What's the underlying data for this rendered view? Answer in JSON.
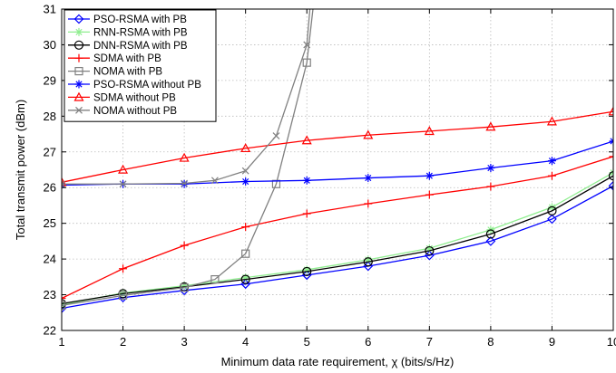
{
  "chart_data": {
    "type": "line",
    "xlabel": "Minimum data rate requirement, χ  (bits/s/Hz)",
    "ylabel": "Total transmit power (dBm)",
    "xlim": [
      1,
      10
    ],
    "ylim": [
      22,
      31
    ],
    "x_ticks": [
      "1",
      "2",
      "3",
      "4",
      "5",
      "6",
      "7",
      "8",
      "9",
      "10"
    ],
    "y_ticks": [
      "22",
      "23",
      "24",
      "25",
      "26",
      "27",
      "28",
      "29",
      "30",
      "31"
    ],
    "grid": true,
    "legend_position": "top-left",
    "series": [
      {
        "name": "PSO-RSMA with PB",
        "color": "#0000ff",
        "marker": "diamond",
        "x": [
          1,
          2,
          3,
          4,
          5,
          6,
          7,
          8,
          9,
          10
        ],
        "y": [
          22.62,
          22.92,
          23.12,
          23.3,
          23.55,
          23.8,
          24.1,
          24.5,
          25.12,
          26.05
        ]
      },
      {
        "name": "RNN-RSMA with PB",
        "color": "#90ee90",
        "marker": "star",
        "x": [
          1,
          2,
          3,
          4,
          5,
          6,
          7,
          8,
          9,
          10
        ],
        "y": [
          22.72,
          23.05,
          23.25,
          23.48,
          23.7,
          23.98,
          24.3,
          24.82,
          25.45,
          26.42
        ]
      },
      {
        "name": "DNN-RSMA with PB",
        "color": "#000000",
        "marker": "circle",
        "x": [
          1,
          2,
          3,
          4,
          5,
          6,
          7,
          8,
          9,
          10
        ],
        "y": [
          22.75,
          23.03,
          23.22,
          23.43,
          23.65,
          23.92,
          24.23,
          24.7,
          25.35,
          26.33
        ]
      },
      {
        "name": "SDMA with PB",
        "color": "#ff0000",
        "marker": "plus",
        "x": [
          1,
          2,
          3,
          4,
          5,
          6,
          7,
          8,
          9,
          10
        ],
        "y": [
          22.9,
          23.73,
          24.38,
          24.9,
          25.27,
          25.55,
          25.8,
          26.03,
          26.33,
          26.87
        ]
      },
      {
        "name": "NOMA with PB",
        "color": "#808080",
        "marker": "square",
        "x": [
          1,
          2,
          3,
          3.5,
          4,
          4.5,
          5,
          5.1
        ],
        "y": [
          22.7,
          22.98,
          23.2,
          23.43,
          24.15,
          26.1,
          29.5,
          31.0
        ]
      },
      {
        "name": "PSO-RSMA without PB",
        "color": "#0000ff",
        "marker": "asterisk",
        "x": [
          1,
          2,
          3,
          4,
          5,
          6,
          7,
          8,
          9,
          10
        ],
        "y": [
          26.07,
          26.1,
          26.1,
          26.17,
          26.2,
          26.27,
          26.33,
          26.55,
          26.75,
          27.3
        ]
      },
      {
        "name": "SDMA without PB",
        "color": "#ff0000",
        "marker": "triangle",
        "x": [
          1,
          2,
          3,
          4,
          5,
          6,
          7,
          8,
          9,
          10
        ],
        "y": [
          26.15,
          26.5,
          26.83,
          27.1,
          27.32,
          27.47,
          27.58,
          27.7,
          27.85,
          28.13
        ]
      },
      {
        "name": "NOMA without PB",
        "color": "#808080",
        "marker": "cross",
        "x": [
          1,
          2,
          3,
          3.5,
          4,
          4.5,
          5,
          5.05
        ],
        "y": [
          26.1,
          26.1,
          26.12,
          26.2,
          26.47,
          27.45,
          30.0,
          31.0
        ]
      }
    ]
  }
}
